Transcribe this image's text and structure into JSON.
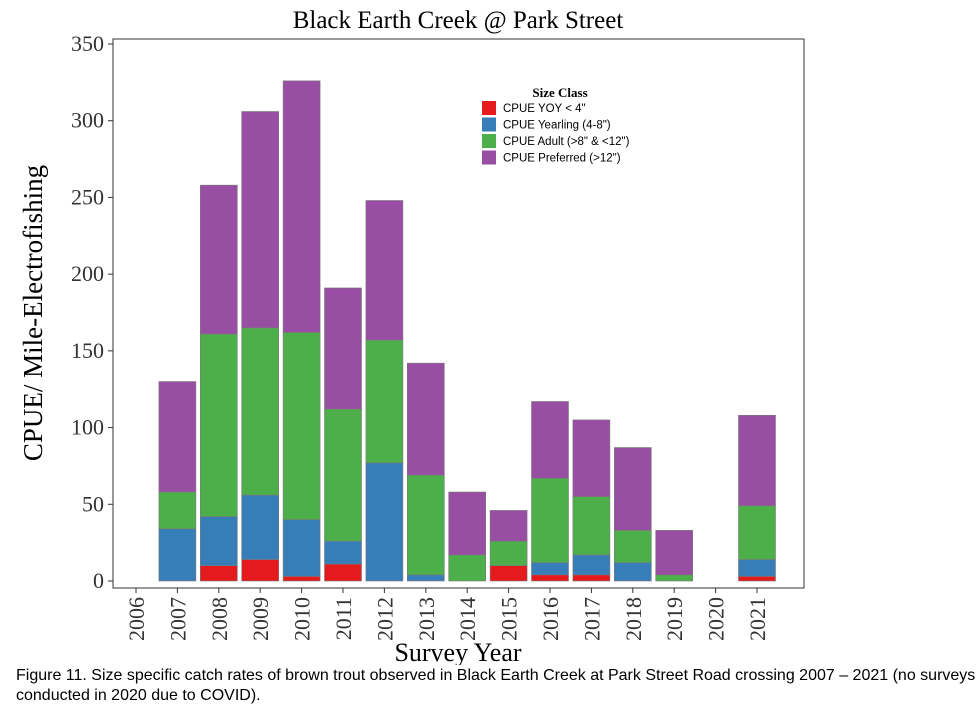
{
  "chart_data": {
    "type": "bar",
    "stacked": true,
    "title": "Black Earth Creek @ Park Street",
    "xlabel": "Survey Year",
    "ylabel": "CPUE/ Mile-Electrofishing",
    "ylim": [
      0,
      350
    ],
    "yticks": [
      0,
      50,
      100,
      150,
      200,
      250,
      300,
      350
    ],
    "grid": false,
    "legend_title": "Size Class",
    "legend_position": "top-right",
    "categories": [
      "2006",
      "2007",
      "2008",
      "2009",
      "2010",
      "2011",
      "2012",
      "2013",
      "2014",
      "2015",
      "2016",
      "2017",
      "2018",
      "2019",
      "2020",
      "2021"
    ],
    "series": [
      {
        "name": "CPUE YOY < 4\"",
        "color": "#e41a1c",
        "values": [
          0,
          0,
          10,
          14,
          3,
          11,
          0,
          0,
          0,
          10,
          4,
          4,
          0,
          0,
          0,
          3
        ]
      },
      {
        "name": "CPUE Yearling (4-8\")",
        "color": "#377eb8",
        "values": [
          0,
          34,
          32,
          42,
          37,
          15,
          77,
          4,
          0,
          0,
          8,
          13,
          12,
          0,
          0,
          11
        ]
      },
      {
        "name": "CPUE Adult (>8\" & <12\")",
        "color": "#4daf4a",
        "values": [
          0,
          24,
          119,
          109,
          122,
          86,
          80,
          65,
          17,
          16,
          55,
          38,
          21,
          4,
          0,
          35
        ]
      },
      {
        "name": "CPUE Preferred (>12\")",
        "color": "#984ea3",
        "values": [
          0,
          72,
          97,
          141,
          164,
          79,
          91,
          73,
          41,
          20,
          50,
          50,
          54,
          29,
          0,
          59
        ]
      }
    ]
  },
  "caption": "Figure 11. Size specific catch rates of brown trout observed in Black Earth Creek at Park Street Road crossing 2007 – 2021 (no surveys conducted in 2020 due to COVID)."
}
